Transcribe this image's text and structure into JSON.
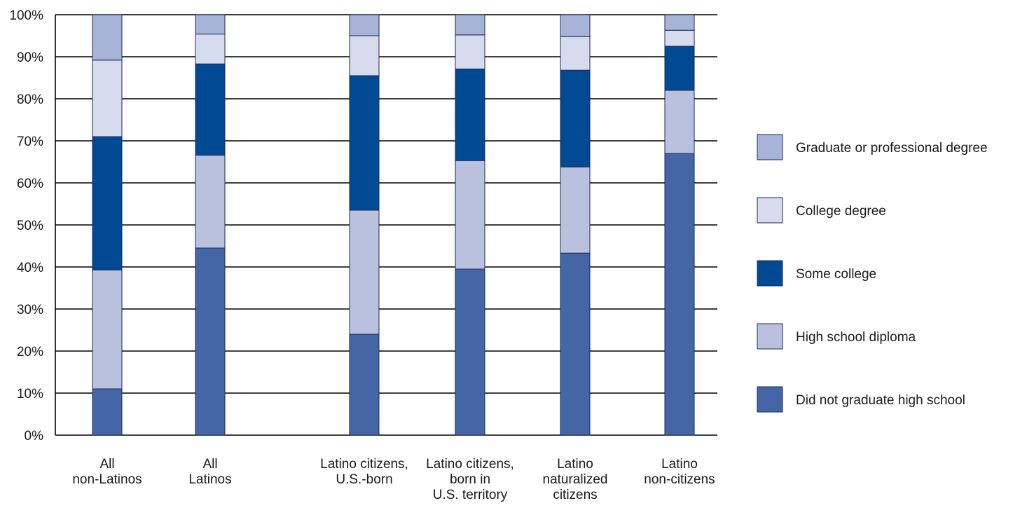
{
  "chart_data": {
    "type": "bar",
    "stacked": true,
    "categories": [
      [
        "All",
        "non-Latinos"
      ],
      [
        "All",
        "Latinos"
      ],
      [
        "Latino citizens,",
        "U.S.-born"
      ],
      [
        "Latino citizens,",
        "born in",
        "U.S. territory"
      ],
      [
        "Latino",
        "naturalized",
        "citizens"
      ],
      [
        "Latino",
        "non-citizens"
      ]
    ],
    "series": [
      {
        "name": "Did not graduate high school",
        "color": "#4466a6",
        "values": [
          11,
          44.5,
          24,
          39.5,
          43.3,
          67
        ]
      },
      {
        "name": "High school diploma",
        "color": "#b9c1de",
        "values": [
          28.3,
          22.1,
          29.5,
          25.8,
          20.5,
          15
        ]
      },
      {
        "name": "Some college",
        "color": "#004a93",
        "values": [
          31.7,
          21.7,
          32,
          21.8,
          23,
          10.5
        ]
      },
      {
        "name": "College degree",
        "color": "#d6dbed",
        "values": [
          18.2,
          7.1,
          9.5,
          8.1,
          8,
          3.8
        ]
      },
      {
        "name": "Graduate or professional degree",
        "color": "#a8b3d8",
        "values": [
          10.8,
          4.6,
          5,
          4.8,
          5.2,
          3.7
        ]
      }
    ],
    "ylim": [
      0,
      100
    ],
    "y_ticks": [
      "0%",
      "10%",
      "20%",
      "30%",
      "40%",
      "50%",
      "60%",
      "70%",
      "80%",
      "90%",
      "100%"
    ],
    "grid": true,
    "legend_position": "right",
    "legend_order": [
      "Graduate or professional degree",
      "College degree",
      "Some college",
      "High school diploma",
      "Did not graduate high school"
    ],
    "title": "",
    "xlabel": "",
    "ylabel": ""
  }
}
